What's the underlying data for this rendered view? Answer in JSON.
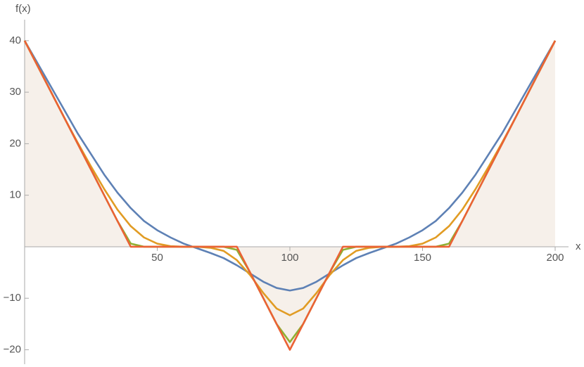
{
  "chart_data": {
    "type": "line",
    "x_label": "x",
    "y_label": "f(x)",
    "x": [
      0,
      5,
      10,
      15,
      20,
      25,
      30,
      35,
      40,
      45,
      50,
      55,
      60,
      65,
      70,
      75,
      80,
      85,
      90,
      95,
      100,
      105,
      110,
      115,
      120,
      125,
      130,
      135,
      140,
      145,
      150,
      155,
      160,
      165,
      170,
      175,
      180,
      185,
      190,
      195,
      200
    ],
    "series": [
      {
        "color": "#5e81b5",
        "values": [
          40,
          35.5,
          31,
          26.5,
          22,
          18,
          14,
          10.5,
          7.5,
          5,
          3.2,
          1.8,
          0.6,
          -0.3,
          -1.2,
          -2.2,
          -3.6,
          -5.2,
          -6.8,
          -8,
          -8.5,
          -8,
          -6.8,
          -5.2,
          -3.6,
          -2.2,
          -1.2,
          -0.3,
          0.6,
          1.8,
          3.2,
          5,
          7.5,
          10.5,
          14,
          18,
          22,
          26.5,
          31,
          35.5,
          40
        ]
      },
      {
        "color": "#e19c24",
        "values": [
          40,
          35,
          30,
          25,
          20.2,
          15.6,
          11.2,
          7.2,
          4,
          1.8,
          0.6,
          0.1,
          0,
          0,
          -0.2,
          -0.8,
          -2.6,
          -5.5,
          -9,
          -12,
          -13.3,
          -12,
          -9,
          -5.5,
          -2.6,
          -0.8,
          -0.2,
          0,
          0,
          0.1,
          0.6,
          1.8,
          4,
          7.2,
          11.2,
          15.6,
          20.2,
          25,
          30,
          35,
          40
        ]
      },
      {
        "color": "#8fb032",
        "values": [
          40,
          35,
          30,
          25,
          20,
          15,
          10,
          5,
          0.6,
          0,
          0,
          0,
          0,
          0,
          0,
          0,
          -0.6,
          -5,
          -10,
          -15,
          -18.5,
          -15,
          -10,
          -5,
          -0.6,
          0,
          0,
          0,
          0,
          0,
          0,
          0,
          0.6,
          5,
          10,
          15,
          20,
          25,
          30,
          35,
          40
        ]
      },
      {
        "color": "#eb6235",
        "filling": true,
        "fill_color": "#f6f0ea",
        "values": [
          40,
          35,
          30,
          25,
          20,
          15,
          10,
          5,
          0,
          0,
          0,
          0,
          0,
          0,
          0,
          0,
          0,
          -5,
          -10,
          -15,
          -20,
          -15,
          -10,
          -5,
          0,
          0,
          0,
          0,
          0,
          0,
          0,
          0,
          0,
          5,
          10,
          15,
          20,
          25,
          30,
          35,
          40
        ]
      }
    ],
    "xlim": [
      0,
      200
    ],
    "ylim": [
      -22.8,
      43.8
    ],
    "xticks": [
      50,
      100,
      150,
      200
    ],
    "yticks": [
      {
        "value": -20,
        "label": "−20"
      },
      {
        "value": -10,
        "label": "−10"
      },
      10,
      20,
      30,
      40
    ]
  }
}
